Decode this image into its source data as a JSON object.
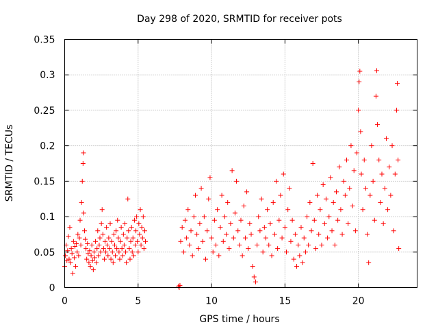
{
  "chart_data": {
    "type": "scatter",
    "title": "Day 298 of 2020, SRMTID for receiver pots",
    "xlabel": "GPS time / hours",
    "ylabel": "SRMTID / TECUs",
    "xlim": [
      0,
      24
    ],
    "ylim": [
      0,
      0.35
    ],
    "xticks": [
      0,
      5,
      10,
      15,
      20
    ],
    "xtick_labels": [
      "0",
      "5",
      "10",
      "15",
      "20"
    ],
    "yticks": [
      0,
      0.05,
      0.1,
      0.15,
      0.2,
      0.25,
      0.3,
      0.35
    ],
    "ytick_labels": [
      "0",
      "0.05",
      "0.1",
      "0.15",
      "0.2",
      "0.25",
      "0.3",
      "0.35"
    ],
    "grid": true,
    "marker": "plus",
    "color": "#ff0000",
    "series": [
      {
        "name": "SRMTID",
        "points": [
          [
            0.0,
            0.03
          ],
          [
            0.05,
            0.045
          ],
          [
            0.1,
            0.06
          ],
          [
            0.15,
            0.038
          ],
          [
            0.2,
            0.052
          ],
          [
            0.25,
            0.072
          ],
          [
            0.3,
            0.04
          ],
          [
            0.35,
            0.085
          ],
          [
            0.4,
            0.035
          ],
          [
            0.45,
            0.055
          ],
          [
            0.5,
            0.048
          ],
          [
            0.55,
            0.02
          ],
          [
            0.6,
            0.065
          ],
          [
            0.65,
            0.042
          ],
          [
            0.7,
            0.058
          ],
          [
            0.75,
            0.03
          ],
          [
            0.8,
            0.062
          ],
          [
            0.85,
            0.05
          ],
          [
            0.9,
            0.075
          ],
          [
            0.95,
            0.045
          ],
          [
            1.0,
            0.07
          ],
          [
            1.05,
            0.095
          ],
          [
            1.1,
            0.06
          ],
          [
            1.15,
            0.12
          ],
          [
            1.2,
            0.15
          ],
          [
            1.25,
            0.175
          ],
          [
            1.28,
            0.19
          ],
          [
            1.3,
            0.105
          ],
          [
            1.35,
            0.08
          ],
          [
            1.4,
            0.068
          ],
          [
            1.45,
            0.055
          ],
          [
            1.5,
            0.04
          ],
          [
            1.55,
            0.062
          ],
          [
            1.6,
            0.048
          ],
          [
            1.65,
            0.035
          ],
          [
            1.7,
            0.052
          ],
          [
            1.75,
            0.03
          ],
          [
            1.8,
            0.045
          ],
          [
            1.85,
            0.06
          ],
          [
            1.9,
            0.038
          ],
          [
            1.95,
            0.025
          ],
          [
            2.0,
            0.05
          ],
          [
            2.05,
            0.042
          ],
          [
            2.1,
            0.065
          ],
          [
            2.15,
            0.035
          ],
          [
            2.2,
            0.055
          ],
          [
            2.25,
            0.08
          ],
          [
            2.3,
            0.045
          ],
          [
            2.35,
            0.06
          ],
          [
            2.4,
            0.07
          ],
          [
            2.45,
            0.05
          ],
          [
            2.5,
            0.09
          ],
          [
            2.55,
            0.11
          ],
          [
            2.6,
            0.075
          ],
          [
            2.65,
            0.055
          ],
          [
            2.7,
            0.04
          ],
          [
            2.75,
            0.065
          ],
          [
            2.8,
            0.05
          ],
          [
            2.85,
            0.085
          ],
          [
            2.9,
            0.06
          ],
          [
            2.95,
            0.045
          ],
          [
            3.0,
            0.07
          ],
          [
            3.05,
            0.055
          ],
          [
            3.1,
            0.09
          ],
          [
            3.15,
            0.04
          ],
          [
            3.2,
            0.065
          ],
          [
            3.25,
            0.05
          ],
          [
            3.3,
            0.035
          ],
          [
            3.35,
            0.075
          ],
          [
            3.4,
            0.06
          ],
          [
            3.45,
            0.045
          ],
          [
            3.5,
            0.08
          ],
          [
            3.55,
            0.055
          ],
          [
            3.6,
            0.095
          ],
          [
            3.65,
            0.07
          ],
          [
            3.7,
            0.05
          ],
          [
            3.75,
            0.04
          ],
          [
            3.8,
            0.065
          ],
          [
            3.85,
            0.085
          ],
          [
            3.9,
            0.055
          ],
          [
            3.95,
            0.045
          ],
          [
            4.0,
            0.075
          ],
          [
            4.05,
            0.06
          ],
          [
            4.1,
            0.09
          ],
          [
            4.15,
            0.05
          ],
          [
            4.2,
            0.035
          ],
          [
            4.25,
            0.07
          ],
          [
            4.3,
            0.125
          ],
          [
            4.35,
            0.08
          ],
          [
            4.4,
            0.055
          ],
          [
            4.45,
            0.04
          ],
          [
            4.5,
            0.065
          ],
          [
            4.55,
            0.085
          ],
          [
            4.6,
            0.05
          ],
          [
            4.65,
            0.07
          ],
          [
            4.7,
            0.045
          ],
          [
            4.75,
            0.095
          ],
          [
            4.8,
            0.06
          ],
          [
            4.85,
            0.08
          ],
          [
            4.9,
            0.1
          ],
          [
            4.95,
            0.065
          ],
          [
            5.0,
            0.05
          ],
          [
            5.05,
            0.09
          ],
          [
            5.1,
            0.075
          ],
          [
            5.15,
            0.11
          ],
          [
            5.2,
            0.06
          ],
          [
            5.25,
            0.085
          ],
          [
            5.3,
            0.07
          ],
          [
            5.35,
            0.1
          ],
          [
            5.4,
            0.055
          ],
          [
            5.45,
            0.08
          ],
          [
            5.5,
            0.065
          ],
          [
            7.75,
            0.002
          ],
          [
            7.8,
            0.0
          ],
          [
            7.85,
            0.003
          ],
          [
            7.9,
            0.065
          ],
          [
            8.0,
            0.085
          ],
          [
            8.1,
            0.05
          ],
          [
            8.2,
            0.095
          ],
          [
            8.3,
            0.07
          ],
          [
            8.4,
            0.11
          ],
          [
            8.5,
            0.06
          ],
          [
            8.6,
            0.08
          ],
          [
            8.7,
            0.045
          ],
          [
            8.8,
            0.1
          ],
          [
            8.9,
            0.13
          ],
          [
            9.0,
            0.075
          ],
          [
            9.1,
            0.055
          ],
          [
            9.2,
            0.09
          ],
          [
            9.3,
            0.14
          ],
          [
            9.4,
            0.065
          ],
          [
            9.5,
            0.1
          ],
          [
            9.6,
            0.04
          ],
          [
            9.7,
            0.08
          ],
          [
            9.8,
            0.125
          ],
          [
            9.9,
            0.155
          ],
          [
            10.0,
            0.07
          ],
          [
            10.1,
            0.05
          ],
          [
            10.2,
            0.095
          ],
          [
            10.3,
            0.06
          ],
          [
            10.4,
            0.11
          ],
          [
            10.5,
            0.045
          ],
          [
            10.6,
            0.085
          ],
          [
            10.7,
            0.13
          ],
          [
            10.8,
            0.065
          ],
          [
            10.9,
            0.1
          ],
          [
            11.0,
            0.075
          ],
          [
            11.1,
            0.12
          ],
          [
            11.2,
            0.055
          ],
          [
            11.3,
            0.09
          ],
          [
            11.4,
            0.165
          ],
          [
            11.5,
            0.07
          ],
          [
            11.6,
            0.105
          ],
          [
            11.7,
            0.15
          ],
          [
            11.8,
            0.08
          ],
          [
            11.9,
            0.06
          ],
          [
            12.0,
            0.095
          ],
          [
            12.1,
            0.045
          ],
          [
            12.2,
            0.115
          ],
          [
            12.3,
            0.07
          ],
          [
            12.4,
            0.135
          ],
          [
            12.5,
            0.055
          ],
          [
            12.6,
            0.09
          ],
          [
            12.7,
            0.075
          ],
          [
            12.8,
            0.03
          ],
          [
            12.9,
            0.015
          ],
          [
            13.0,
            0.008
          ],
          [
            13.1,
            0.06
          ],
          [
            13.2,
            0.1
          ],
          [
            13.3,
            0.08
          ],
          [
            13.4,
            0.125
          ],
          [
            13.5,
            0.05
          ],
          [
            13.6,
            0.085
          ],
          [
            13.7,
            0.07
          ],
          [
            13.8,
            0.11
          ],
          [
            13.9,
            0.06
          ],
          [
            14.0,
            0.09
          ],
          [
            14.1,
            0.045
          ],
          [
            14.2,
            0.12
          ],
          [
            14.3,
            0.075
          ],
          [
            14.4,
            0.15
          ],
          [
            14.5,
            0.055
          ],
          [
            14.6,
            0.095
          ],
          [
            14.7,
            0.13
          ],
          [
            14.8,
            0.07
          ],
          [
            14.9,
            0.16
          ],
          [
            15.0,
            0.085
          ],
          [
            15.1,
            0.05
          ],
          [
            15.2,
            0.11
          ],
          [
            15.3,
            0.14
          ],
          [
            15.4,
            0.065
          ],
          [
            15.5,
            0.095
          ],
          [
            15.6,
            0.04
          ],
          [
            15.7,
            0.075
          ],
          [
            15.8,
            0.03
          ],
          [
            15.9,
            0.06
          ],
          [
            16.0,
            0.045
          ],
          [
            16.1,
            0.085
          ],
          [
            16.2,
            0.035
          ],
          [
            16.3,
            0.07
          ],
          [
            16.4,
            0.05
          ],
          [
            16.5,
            0.1
          ],
          [
            16.6,
            0.06
          ],
          [
            16.7,
            0.12
          ],
          [
            16.8,
            0.08
          ],
          [
            16.9,
            0.175
          ],
          [
            17.0,
            0.095
          ],
          [
            17.1,
            0.055
          ],
          [
            17.2,
            0.13
          ],
          [
            17.3,
            0.075
          ],
          [
            17.4,
            0.11
          ],
          [
            17.5,
            0.06
          ],
          [
            17.6,
            0.145
          ],
          [
            17.7,
            0.09
          ],
          [
            17.8,
            0.125
          ],
          [
            17.9,
            0.07
          ],
          [
            18.0,
            0.1
          ],
          [
            18.1,
            0.155
          ],
          [
            18.2,
            0.08
          ],
          [
            18.3,
            0.12
          ],
          [
            18.4,
            0.06
          ],
          [
            18.5,
            0.135
          ],
          [
            18.6,
            0.095
          ],
          [
            18.7,
            0.17
          ],
          [
            18.8,
            0.11
          ],
          [
            18.9,
            0.075
          ],
          [
            19.0,
            0.15
          ],
          [
            19.1,
            0.13
          ],
          [
            19.2,
            0.18
          ],
          [
            19.3,
            0.09
          ],
          [
            19.4,
            0.14
          ],
          [
            19.5,
            0.2
          ],
          [
            19.6,
            0.115
          ],
          [
            19.7,
            0.165
          ],
          [
            19.8,
            0.08
          ],
          [
            19.9,
            0.19
          ],
          [
            20.0,
            0.25
          ],
          [
            20.05,
            0.29
          ],
          [
            20.1,
            0.305
          ],
          [
            20.15,
            0.22
          ],
          [
            20.2,
            0.16
          ],
          [
            20.3,
            0.11
          ],
          [
            20.4,
            0.18
          ],
          [
            20.5,
            0.14
          ],
          [
            20.6,
            0.075
          ],
          [
            20.7,
            0.035
          ],
          [
            20.8,
            0.13
          ],
          [
            20.9,
            0.2
          ],
          [
            21.0,
            0.15
          ],
          [
            21.1,
            0.095
          ],
          [
            21.2,
            0.27
          ],
          [
            21.25,
            0.306
          ],
          [
            21.3,
            0.23
          ],
          [
            21.4,
            0.18
          ],
          [
            21.5,
            0.12
          ],
          [
            21.6,
            0.16
          ],
          [
            21.7,
            0.09
          ],
          [
            21.8,
            0.14
          ],
          [
            21.9,
            0.21
          ],
          [
            22.0,
            0.11
          ],
          [
            22.1,
            0.17
          ],
          [
            22.2,
            0.13
          ],
          [
            22.3,
            0.2
          ],
          [
            22.4,
            0.08
          ],
          [
            22.5,
            0.16
          ],
          [
            22.6,
            0.25
          ],
          [
            22.65,
            0.288
          ],
          [
            22.7,
            0.18
          ],
          [
            22.75,
            0.055
          ]
        ]
      }
    ]
  }
}
